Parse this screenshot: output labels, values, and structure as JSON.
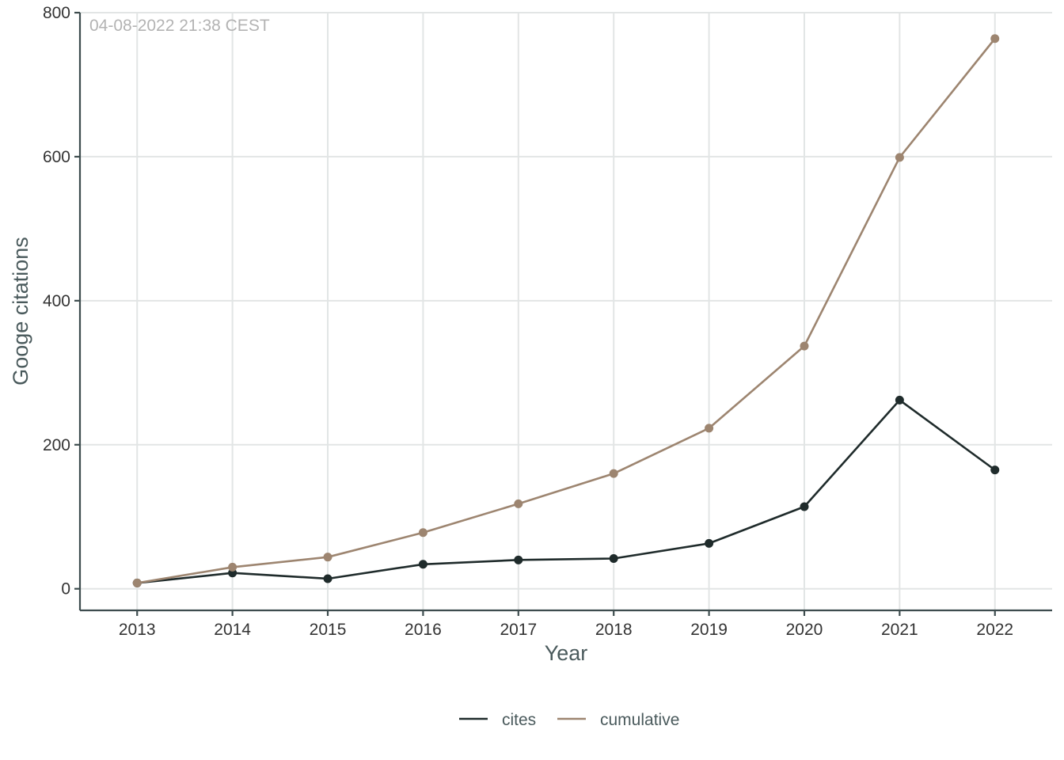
{
  "chart_data": {
    "type": "line",
    "title": "",
    "annotation": "04-08-2022 21:38 CEST",
    "xlabel": "Year",
    "ylabel": "Googe citations",
    "x": [
      2013,
      2014,
      2015,
      2016,
      2017,
      2018,
      2019,
      2020,
      2021,
      2022
    ],
    "x_tick_labels": [
      "2013",
      "2014",
      "2015",
      "2016",
      "2017",
      "2018",
      "2019",
      "2020",
      "2021",
      "2022"
    ],
    "xlim": [
      2012.4,
      2022.6
    ],
    "ylim": [
      -30,
      800
    ],
    "y_ticks": [
      0,
      200,
      400,
      600,
      800
    ],
    "y_tick_labels": [
      "0",
      "200",
      "400",
      "600",
      "800"
    ],
    "grid": true,
    "legend_position": "bottom",
    "series": [
      {
        "name": "cites",
        "color": "#1f2b2b",
        "values": [
          8,
          22,
          14,
          34,
          40,
          42,
          63,
          114,
          262,
          165
        ]
      },
      {
        "name": "cumulative",
        "color": "#9d8570",
        "values": [
          8,
          30,
          44,
          78,
          118,
          160,
          223,
          337,
          599,
          764
        ]
      }
    ]
  }
}
